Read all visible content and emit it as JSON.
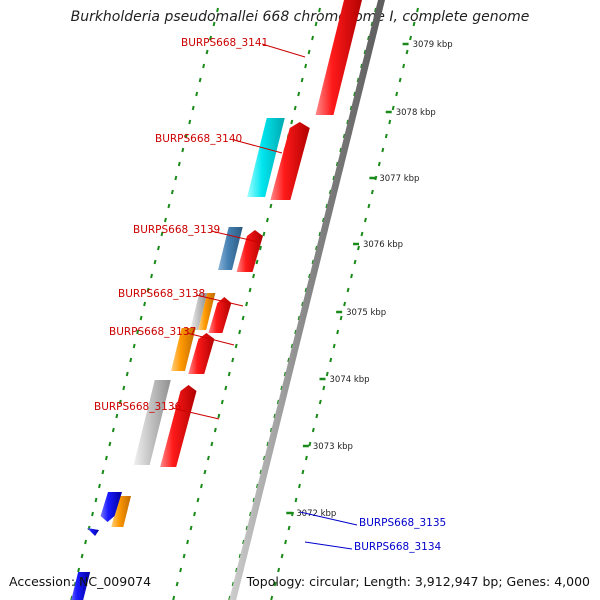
{
  "title": "Burkholderia pseudomallei 668 chromosome I, complete genome",
  "footer": {
    "accession": "Accession: NC_009074",
    "summary": "Topology: circular; Length: 3,912,947 bp; Genes: 4,000"
  },
  "colors": {
    "forward_gene": "#ff1a1a",
    "reverse_gene": "#1a1aff",
    "cyan_feature": "#00e5ee",
    "steelblue_feature": "#4682b4",
    "orange_feature": "#ff9900",
    "grey_feature": "#c8c8c8",
    "backbone": "#888888",
    "ticks": "#1a8a1a",
    "forward_label": "#cc0000",
    "reverse_label": "#0000cc"
  },
  "kbp_ticks": [
    "3079 kbp",
    "3078 kbp",
    "3077 kbp",
    "3076 kbp",
    "3075 kbp",
    "3074 kbp",
    "3073 kbp",
    "3072 kbp"
  ],
  "gene_labels": [
    {
      "text": "BURPS668_3141",
      "strand": "forward"
    },
    {
      "text": "BURPS668_3140",
      "strand": "forward"
    },
    {
      "text": "BURPS668_3139",
      "strand": "forward"
    },
    {
      "text": "BURPS668_3138",
      "strand": "forward"
    },
    {
      "text": "BURPS668_3137",
      "strand": "forward"
    },
    {
      "text": "BURPS668_3136",
      "strand": "forward"
    },
    {
      "text": "BURPS668_3135",
      "strand": "reverse"
    },
    {
      "text": "BURPS668_3134",
      "strand": "reverse"
    }
  ]
}
